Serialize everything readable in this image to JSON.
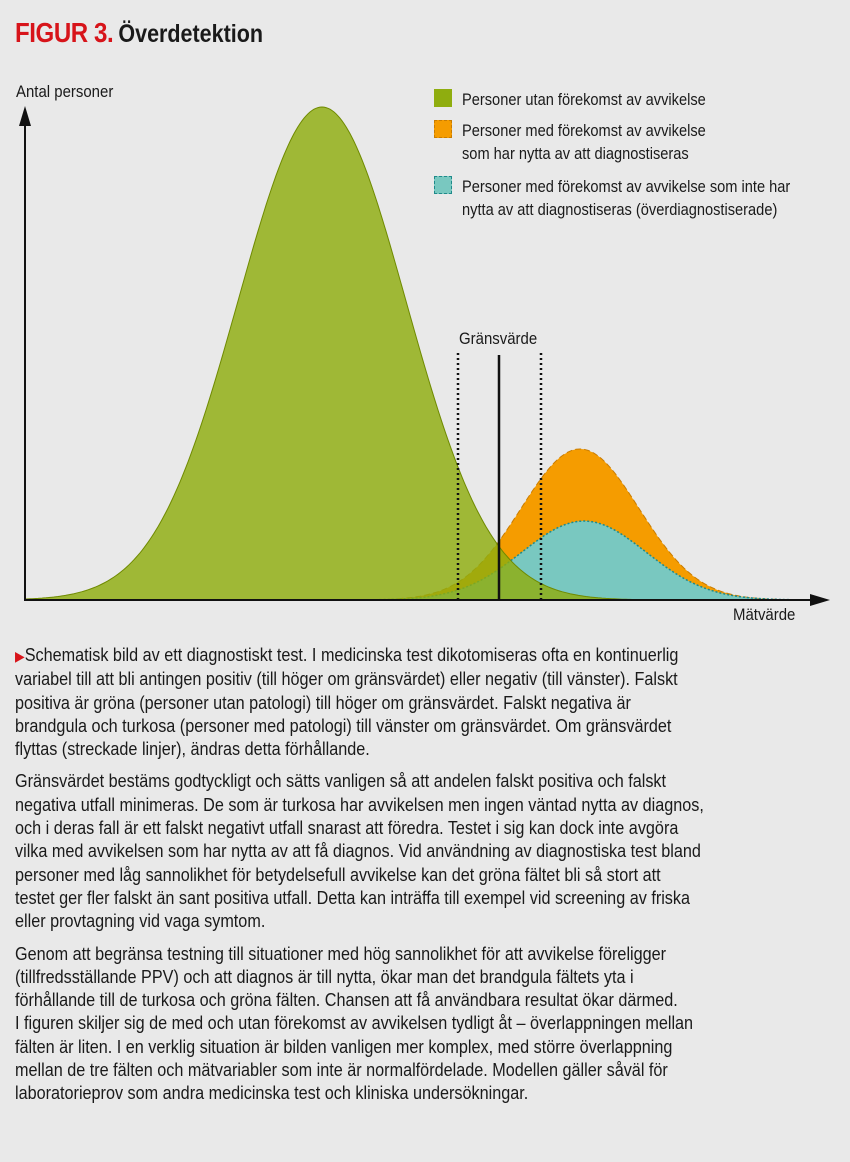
{
  "header": {
    "figure_label": "FIGUR 3.",
    "title": "Överdetektion"
  },
  "diagram": {
    "y_axis_label": "Antal personer",
    "x_axis_label": "Mätvärde",
    "threshold_label": "Gränsvärde",
    "colors": {
      "green": "#8fad0f",
      "orange": "#f59c00",
      "teal": "#79c8c0",
      "accent": "#d7141a"
    },
    "legend": [
      {
        "lines": [
          "Personer utan förekomst av avvikelse"
        ]
      },
      {
        "lines": [
          "Personer med förekomst av avvikelse",
          "som har nytta av att diagnostiseras"
        ]
      },
      {
        "lines": [
          "Personer med förekomst av avvikelse som inte har",
          "nytta av att diagnostiseras (överdiagnostiserade)"
        ]
      }
    ]
  },
  "caption": {
    "paragraphs": [
      {
        "lines": [
          "Schematisk bild av ett diagnostiskt test. I medicinska test dikotomiseras ofta en kontinuerlig",
          "variabel till att bli antingen positiv (till höger om gränsvärdet) eller negativ (till vänster). Falskt",
          "positiva är gröna (personer utan patologi) till höger om gränsvärdet. Falskt negativa är",
          "brandgula och turkosa (personer med patologi) till vänster om gränsvärdet. Om gränsvärdet",
          "flyttas (streckade linjer), ändras detta förhållande."
        ]
      },
      {
        "lines": [
          "Gränsvärdet bestäms godtyckligt och sätts vanligen så att andelen falskt positiva och falskt",
          "negativa utfall minimeras. De som är turkosa har avvikelsen men ingen väntad nytta av diagnos,",
          "och i deras fall är ett falskt negativt utfall snarast att föredra. Testet i sig kan dock inte avgöra",
          "vilka med avvikelsen som har nytta av att få diagnos. Vid användning av diagnostiska test bland",
          "personer med låg sannolikhet för betydelsefull avvikelse kan det gröna fältet bli så stort att",
          "testet ger fler falskt än sant positiva utfall. Detta kan inträffa till exempel vid screening av friska",
          "eller provtagning vid vaga symtom."
        ]
      },
      {
        "lines": [
          "Genom att begränsa testning till situationer med hög sannolikhet för att avvikelse föreligger",
          "(tillfredsställande PPV) och att diagnos är till nytta, ökar man det brandgula fältets yta i",
          "förhållande till de turkosa och gröna fälten. Chansen att få användbara resultat ökar därmed.",
          "I figuren skiljer sig de med och utan förekomst av avvikelsen tydligt åt – överlappningen mellan",
          "fälten är liten. I en verklig situation är bilden vanligen mer komplex, med större överlappning",
          "mellan de tre fälten och mätvariabler som inte är normalfördelade. Modellen gäller såväl för",
          "laboratorieprov som andra medicinska test och kliniska undersökningar."
        ]
      }
    ]
  }
}
